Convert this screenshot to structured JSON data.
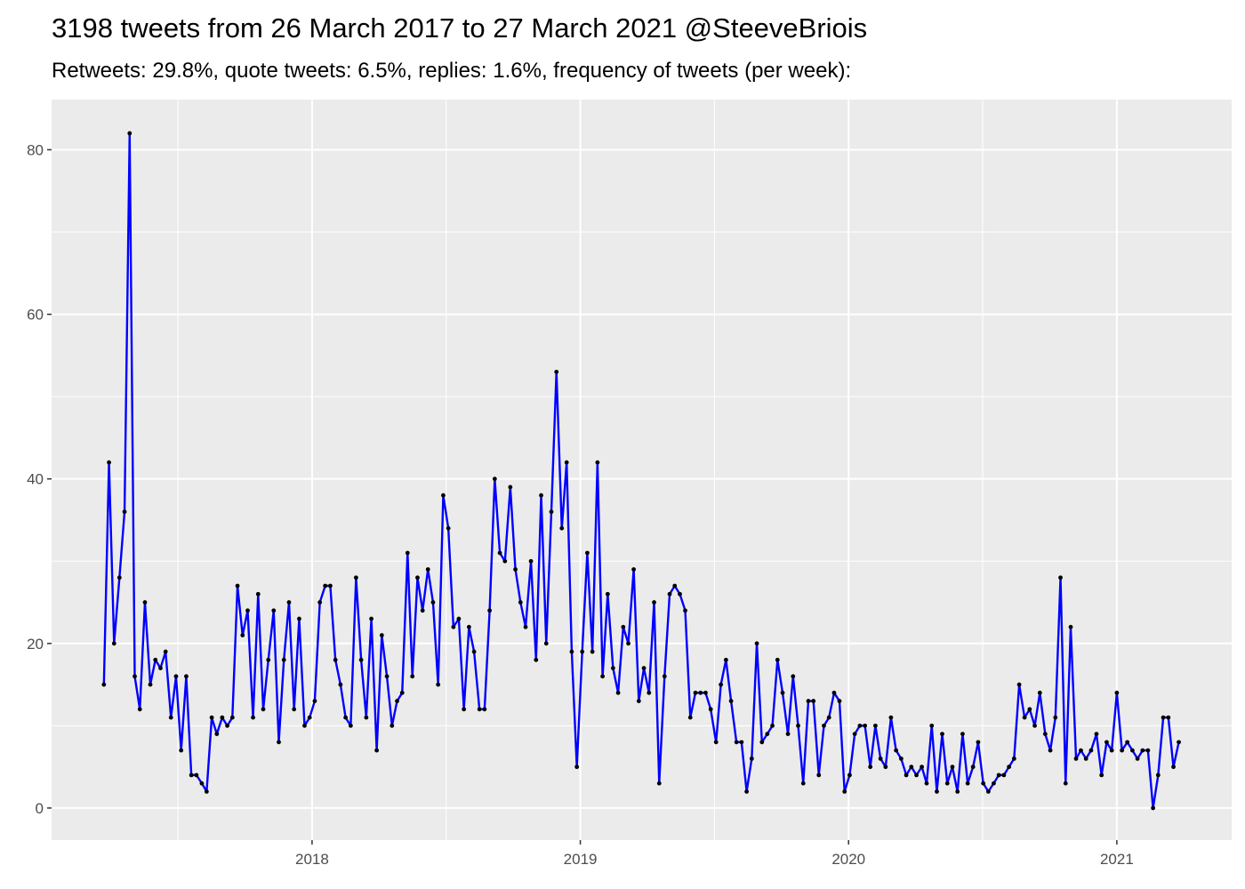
{
  "chart_data": {
    "type": "line",
    "title": "3198 tweets from 26 March 2017 to 27 March 2021 @SteeveBriois",
    "subtitle": "Retweets: 29.8%, quote tweets: 6.5%, replies: 1.6%, frequency of tweets (per week):",
    "color": "#0000ff",
    "point_color": "#000000",
    "grid": true,
    "xlim": [
      2017.029,
      2021.428
    ],
    "xticks": [
      2018,
      2019,
      2020,
      2021
    ],
    "ylim": [
      -3.9,
      86.1
    ],
    "yticks": [
      0,
      20,
      40,
      60,
      80
    ],
    "x": [
      2017.224,
      2017.243,
      2017.262,
      2017.282,
      2017.301,
      2017.32,
      2017.339,
      2017.358,
      2017.377,
      2017.397,
      2017.416,
      2017.435,
      2017.454,
      2017.474,
      2017.493,
      2017.512,
      2017.531,
      2017.55,
      2017.569,
      2017.589,
      2017.607,
      2017.626,
      2017.645,
      2017.665,
      2017.684,
      2017.703,
      2017.722,
      2017.741,
      2017.76,
      2017.78,
      2017.799,
      2017.818,
      2017.837,
      2017.857,
      2017.876,
      2017.895,
      2017.914,
      2017.933,
      2017.952,
      2017.972,
      2017.991,
      2018.01,
      2018.029,
      2018.049,
      2018.068,
      2018.087,
      2018.106,
      2018.125,
      2018.144,
      2018.164,
      2018.183,
      2018.202,
      2018.221,
      2018.241,
      2018.26,
      2018.279,
      2018.298,
      2018.317,
      2018.336,
      2018.356,
      2018.374,
      2018.393,
      2018.412,
      2018.432,
      2018.451,
      2018.47,
      2018.489,
      2018.508,
      2018.527,
      2018.547,
      2018.566,
      2018.585,
      2018.604,
      2018.624,
      2018.643,
      2018.662,
      2018.681,
      2018.7,
      2018.719,
      2018.739,
      2018.758,
      2018.777,
      2018.796,
      2018.816,
      2018.835,
      2018.854,
      2018.873,
      2018.892,
      2018.911,
      2018.931,
      2018.949,
      2018.968,
      2018.987,
      2019.007,
      2019.026,
      2019.045,
      2019.064,
      2019.083,
      2019.102,
      2019.122,
      2019.141,
      2019.16,
      2019.179,
      2019.199,
      2019.218,
      2019.237,
      2019.256,
      2019.275,
      2019.294,
      2019.314,
      2019.333,
      2019.352,
      2019.371,
      2019.391,
      2019.41,
      2019.429,
      2019.448,
      2019.467,
      2019.486,
      2019.506,
      2019.524,
      2019.543,
      2019.562,
      2019.582,
      2019.601,
      2019.62,
      2019.639,
      2019.658,
      2019.677,
      2019.697,
      2019.716,
      2019.735,
      2019.754,
      2019.774,
      2019.793,
      2019.812,
      2019.831,
      2019.85,
      2019.869,
      2019.889,
      2019.908,
      2019.927,
      2019.946,
      2019.966,
      2019.985,
      2020.004,
      2020.023,
      2020.042,
      2020.061,
      2020.081,
      2020.1,
      2020.119,
      2020.138,
      2020.158,
      2020.177,
      2020.196,
      2020.215,
      2020.234,
      2020.253,
      2020.273,
      2020.291,
      2020.31,
      2020.329,
      2020.349,
      2020.368,
      2020.387,
      2020.406,
      2020.425,
      2020.444,
      2020.464,
      2020.483,
      2020.502,
      2020.521,
      2020.541,
      2020.56,
      2020.579,
      2020.598,
      2020.617,
      2020.636,
      2020.656,
      2020.675,
      2020.694,
      2020.713,
      2020.733,
      2020.752,
      2020.771,
      2020.79,
      2020.809,
      2020.828,
      2020.848,
      2020.866,
      2020.885,
      2020.904,
      2020.924,
      2020.943,
      2020.962,
      2020.981,
      2021.0,
      2021.019,
      2021.039,
      2021.058,
      2021.077,
      2021.096,
      2021.116,
      2021.135,
      2021.154,
      2021.173,
      2021.192,
      2021.211,
      2021.231
    ],
    "values": [
      15,
      42,
      20,
      28,
      36,
      82,
      16,
      12,
      25,
      15,
      18,
      17,
      19,
      11,
      16,
      7,
      16,
      4,
      4,
      3,
      2,
      11,
      9,
      11,
      10,
      11,
      27,
      21,
      24,
      11,
      26,
      12,
      18,
      24,
      8,
      18,
      25,
      12,
      23,
      10,
      11,
      13,
      25,
      27,
      27,
      18,
      15,
      11,
      10,
      28,
      18,
      11,
      23,
      7,
      21,
      16,
      10,
      13,
      14,
      31,
      16,
      28,
      24,
      29,
      25,
      15,
      38,
      34,
      22,
      23,
      12,
      22,
      19,
      12,
      12,
      24,
      40,
      31,
      30,
      39,
      29,
      25,
      22,
      30,
      18,
      38,
      20,
      36,
      53,
      34,
      42,
      19,
      5,
      19,
      31,
      19,
      42,
      16,
      26,
      17,
      14,
      22,
      20,
      29,
      13,
      17,
      14,
      25,
      3,
      16,
      26,
      27,
      26,
      24,
      11,
      14,
      14,
      14,
      12,
      8,
      15,
      18,
      13,
      8,
      8,
      2,
      6,
      20,
      8,
      9,
      10,
      18,
      14,
      9,
      16,
      10,
      3,
      13,
      13,
      4,
      10,
      11,
      14,
      13,
      2,
      4,
      9,
      10,
      10,
      5,
      10,
      6,
      5,
      11,
      7,
      6,
      4,
      5,
      4,
      5,
      3,
      10,
      2,
      9,
      3,
      5,
      2,
      9,
      3,
      5,
      8,
      3,
      2,
      3,
      4,
      4,
      5,
      6,
      15,
      11,
      12,
      10,
      14,
      9,
      7,
      11,
      28,
      3,
      22,
      6,
      7,
      6,
      7,
      9,
      4,
      8,
      7,
      14,
      7,
      8,
      7,
      6,
      7,
      7,
      0,
      4,
      11,
      11,
      5,
      8
    ]
  }
}
